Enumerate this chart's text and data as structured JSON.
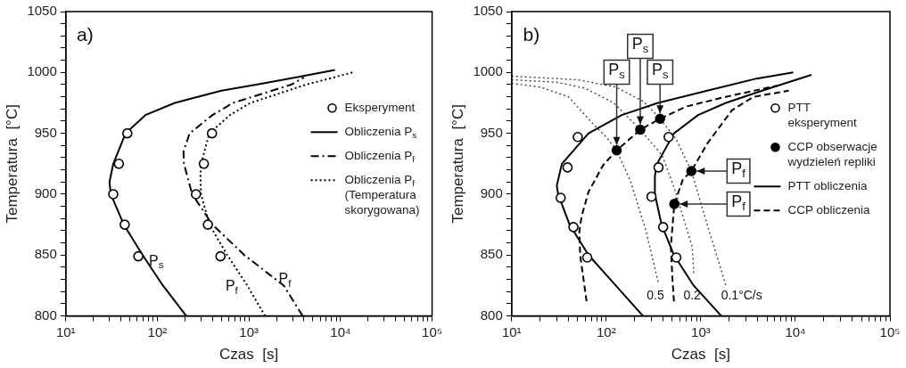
{
  "chart_data": [
    {
      "type": "line",
      "xlabel": "Czas  [s]",
      "ylabel": "Temperatura  [°C]",
      "log": "x",
      "xlim": [
        10,
        100000
      ],
      "ylim": [
        800,
        1050
      ],
      "xticks": [
        {
          "value": 10,
          "label": "10¹"
        },
        {
          "value": 20,
          "label": null
        },
        {
          "value": 30,
          "label": null
        },
        {
          "value": 40,
          "label": null
        },
        {
          "value": 50,
          "label": null
        },
        {
          "value": 60,
          "label": null
        },
        {
          "value": 70,
          "label": null
        },
        {
          "value": 80,
          "label": null
        },
        {
          "value": 90,
          "label": null
        },
        {
          "value": 100,
          "label": "10²"
        },
        {
          "value": 200,
          "label": null
        },
        {
          "value": 300,
          "label": null
        },
        {
          "value": 400,
          "label": null
        },
        {
          "value": 500,
          "label": null
        },
        {
          "value": 600,
          "label": null
        },
        {
          "value": 700,
          "label": null
        },
        {
          "value": 800,
          "label": null
        },
        {
          "value": 900,
          "label": null
        },
        {
          "value": 1000,
          "label": "10³"
        },
        {
          "value": 2000,
          "label": null
        },
        {
          "value": 3000,
          "label": null
        },
        {
          "value": 4000,
          "label": null
        },
        {
          "value": 5000,
          "label": null
        },
        {
          "value": 6000,
          "label": null
        },
        {
          "value": 7000,
          "label": null
        },
        {
          "value": 8000,
          "label": null
        },
        {
          "value": 9000,
          "label": null
        },
        {
          "value": 10000,
          "label": "10⁴"
        },
        {
          "value": 20000,
          "label": null
        },
        {
          "value": 30000,
          "label": null
        },
        {
          "value": 40000,
          "label": null
        },
        {
          "value": 50000,
          "label": null
        },
        {
          "value": 60000,
          "label": null
        },
        {
          "value": 70000,
          "label": null
        },
        {
          "value": 80000,
          "label": null
        },
        {
          "value": 90000,
          "label": null
        },
        {
          "value": 100000,
          "label": "10⁵"
        }
      ],
      "yticks": [
        800,
        {
          "value": 810,
          "label": null
        },
        {
          "value": 820,
          "label": null
        },
        {
          "value": 830,
          "label": null
        },
        {
          "value": 840,
          "label": null
        },
        850,
        {
          "value": 860,
          "label": null
        },
        {
          "value": 870,
          "label": null
        },
        {
          "value": 880,
          "label": null
        },
        {
          "value": 890,
          "label": null
        },
        900,
        {
          "value": 910,
          "label": null
        },
        {
          "value": 920,
          "label": null
        },
        {
          "value": 930,
          "label": null
        },
        {
          "value": 940,
          "label": null
        },
        950,
        {
          "value": 960,
          "label": null
        },
        {
          "value": 970,
          "label": null
        },
        {
          "value": 980,
          "label": null
        },
        {
          "value": 990,
          "label": null
        },
        1000,
        {
          "value": 1010,
          "label": null
        },
        {
          "value": 1020,
          "label": null
        },
        {
          "value": 1030,
          "label": null
        },
        {
          "value": 1040,
          "label": null
        },
        1050
      ],
      "grid": false,
      "legend": "right",
      "annotations": [
        "a)",
        "P$_{s}$",
        "P$_{f}$",
        "P$_{f}$"
      ],
      "series": [
        {
          "name": "Eksperyment",
          "type": "scatter",
          "marker": "circle",
          "color": "#000000",
          "x": [
            47,
            38,
            33,
            44,
            62,
            395,
            322,
            264,
            356,
            489
          ],
          "values": [
            950,
            925,
            900,
            875,
            849,
            950,
            925,
            900,
            875,
            849
          ]
        },
        {
          "name": "Obliczenia P$_{s}$",
          "type": "line",
          "marker": "none",
          "line_style": "solid",
          "color": "#000000",
          "x": [
            207,
            115,
            69,
            43,
            31,
            30,
            33,
            45,
            74,
            155,
            500,
            1200,
            3300,
            8700
          ],
          "values": [
            800,
            825,
            850,
            875,
            900,
            910,
            925,
            950,
            965,
            975,
            985,
            990,
            996,
            1002
          ]
        },
        {
          "name": "Obliczenia P$_{f}$",
          "type": "line",
          "marker": "none",
          "line_style": "dashdot",
          "color": "#000000",
          "x": [
            3860,
            2400,
            890,
            400,
            240,
            195,
            193,
            225,
            400,
            670,
            2900,
            4000
          ],
          "values": [
            800,
            825,
            850,
            875,
            900,
            925,
            935,
            950,
            965,
            975,
            990,
            996
          ]
        },
        {
          "name": "Obliczenia P$_{f}$ (Temperatura skorygowana)",
          "type": "line",
          "marker": "none",
          "line_style": "dotted",
          "color": "#000000",
          "x": [
            1500,
            960,
            580,
            370,
            300,
            295,
            300,
            370,
            620,
            1040,
            4200,
            13500
          ],
          "values": [
            800,
            825,
            850,
            875,
            900,
            915,
            925,
            950,
            965,
            975,
            990,
            1000
          ]
        }
      ]
    },
    {
      "type": "line",
      "xlabel": "Czas  [s]",
      "ylabel": "Temperatura  [°C]",
      "log": "x",
      "xlim": [
        10,
        100000
      ],
      "ylim": [
        800,
        1050
      ],
      "xticks": [
        {
          "value": 10,
          "label": "10¹"
        },
        {
          "value": 20,
          "label": null
        },
        {
          "value": 30,
          "label": null
        },
        {
          "value": 40,
          "label": null
        },
        {
          "value": 50,
          "label": null
        },
        {
          "value": 60,
          "label": null
        },
        {
          "value": 70,
          "label": null
        },
        {
          "value": 80,
          "label": null
        },
        {
          "value": 90,
          "label": null
        },
        {
          "value": 100,
          "label": "10²"
        },
        {
          "value": 200,
          "label": null
        },
        {
          "value": 300,
          "label": null
        },
        {
          "value": 400,
          "label": null
        },
        {
          "value": 500,
          "label": null
        },
        {
          "value": 600,
          "label": null
        },
        {
          "value": 700,
          "label": null
        },
        {
          "value": 800,
          "label": null
        },
        {
          "value": 900,
          "label": null
        },
        {
          "value": 1000,
          "label": "10³"
        },
        {
          "value": 2000,
          "label": null
        },
        {
          "value": 3000,
          "label": null
        },
        {
          "value": 4000,
          "label": null
        },
        {
          "value": 5000,
          "label": null
        },
        {
          "value": 6000,
          "label": null
        },
        {
          "value": 7000,
          "label": null
        },
        {
          "value": 8000,
          "label": null
        },
        {
          "value": 9000,
          "label": null
        },
        {
          "value": 10000,
          "label": "10⁴"
        },
        {
          "value": 20000,
          "label": null
        },
        {
          "value": 30000,
          "label": null
        },
        {
          "value": 40000,
          "label": null
        },
        {
          "value": 50000,
          "label": null
        },
        {
          "value": 60000,
          "label": null
        },
        {
          "value": 70000,
          "label": null
        },
        {
          "value": 80000,
          "label": null
        },
        {
          "value": 90000,
          "label": null
        },
        {
          "value": 100000,
          "label": "10⁵"
        }
      ],
      "yticks": [
        800,
        {
          "value": 810,
          "label": null
        },
        {
          "value": 820,
          "label": null
        },
        {
          "value": 830,
          "label": null
        },
        {
          "value": 840,
          "label": null
        },
        850,
        {
          "value": 860,
          "label": null
        },
        {
          "value": 870,
          "label": null
        },
        {
          "value": 880,
          "label": null
        },
        {
          "value": 890,
          "label": null
        },
        900,
        {
          "value": 910,
          "label": null
        },
        {
          "value": 920,
          "label": null
        },
        {
          "value": 930,
          "label": null
        },
        {
          "value": 940,
          "label": null
        },
        950,
        {
          "value": 960,
          "label": null
        },
        {
          "value": 970,
          "label": null
        },
        {
          "value": 980,
          "label": null
        },
        {
          "value": 990,
          "label": null
        },
        1000,
        {
          "value": 1010,
          "label": null
        },
        {
          "value": 1020,
          "label": null
        },
        {
          "value": 1030,
          "label": null
        },
        {
          "value": 1040,
          "label": null
        },
        1050
      ],
      "grid": false,
      "legend": "right",
      "annotations": [
        "b)",
        {
          "text": "P$_{s}$",
          "x": 129,
          "y": 936
        },
        {
          "text": "P$_{s}$",
          "x": 229,
          "y": 953
        },
        {
          "text": "P$_{s}$",
          "x": 371,
          "y": 962
        },
        {
          "text": "P$_{f}$",
          "x": 795,
          "y": 919
        },
        {
          "text": "P$_{f}$",
          "x": 525,
          "y": 892
        },
        "0.5",
        "0.2",
        "0.1°C/s"
      ],
      "series": [
        {
          "name": "PTT eksperyment",
          "type": "scatter",
          "marker": "circle",
          "color": "#000000",
          "x": [
            50,
            39,
            33,
            45,
            63,
            457,
            357,
            301,
            400,
            551
          ],
          "values": [
            947,
            922,
            897,
            873,
            848,
            947,
            922,
            898,
            873,
            848
          ]
        },
        {
          "name": "CCP obserwacje wydzieleń repliki",
          "type": "scatter",
          "marker": "circle",
          "color": "#000000",
          "x": [
            129,
            229,
            371,
            795,
            525
          ],
          "values": [
            936,
            953,
            962,
            919,
            892
          ]
        },
        {
          "name": "PTT obliczenia",
          "type": "line",
          "marker": "none",
          "line_style": "solid",
          "color": "#000000",
          "x": [
            245,
            126,
            65,
            41,
            31,
            30,
            34,
            65,
            146,
            352,
            1170,
            3900,
            9500
          ],
          "values": [
            800,
            825,
            850,
            875,
            900,
            907,
            925,
            950,
            965,
            975,
            985,
            995,
            1000
          ]
        },
        {
          "type": "line",
          "marker": "none",
          "line_style": "solid",
          "color": "#000000",
          "x": [
            1650,
            840,
            520,
            385,
            327,
            327,
            345,
            520,
            935,
            1840,
            4450,
            14800
          ],
          "values": [
            800,
            825,
            850,
            875,
            900,
            915,
            925,
            950,
            965,
            975,
            985,
            998
          ]
        },
        {
          "name": "CCP obliczenia",
          "type": "line",
          "marker": "none",
          "line_style": "dashed",
          "color": "#000000",
          "x": [
            62,
            53,
            52,
            55,
            65,
            93,
            129,
            229,
            371,
            700,
            1840,
            6300
          ],
          "values": [
            812,
            850,
            870,
            882,
            902,
            924,
            936,
            953,
            962,
            972,
            980,
            989
          ]
        },
        {
          "type": "line",
          "marker": "none",
          "line_style": "dashed",
          "color": "#000000",
          "x": [
            520,
            500,
            482,
            525,
            645,
            795,
            1180,
            2140,
            3600,
            8500
          ],
          "values": [
            812,
            832,
            857,
            892,
            912,
            919,
            942,
            969,
            980,
            985
          ]
        },
        {
          "type": "line",
          "marker": "none",
          "line_style": "dotted",
          "color": "#444444",
          "x": [
            10,
            20,
            40,
            70,
            100,
            129,
            182,
            263,
            354
          ],
          "values": [
            991,
            988,
            980,
            959,
            947,
            936,
            910,
            870,
            828
          ]
        },
        {
          "type": "line",
          "marker": "none",
          "line_style": "dotted",
          "color": "#444444",
          "x": [
            10,
            30,
            60,
            120,
            229,
            390,
            525,
            810,
            845
          ],
          "values": [
            994,
            992,
            987,
            975,
            953,
            932,
            905,
            857,
            835
          ]
        },
        {
          "type": "line",
          "marker": "none",
          "line_style": "dotted",
          "color": "#444444",
          "x": [
            10,
            50,
            126,
            250,
            371,
            550,
            795,
            1170,
            1580,
            1840
          ],
          "values": [
            997,
            994,
            988,
            976,
            962,
            945,
            919,
            875,
            842,
            825
          ]
        }
      ]
    }
  ]
}
